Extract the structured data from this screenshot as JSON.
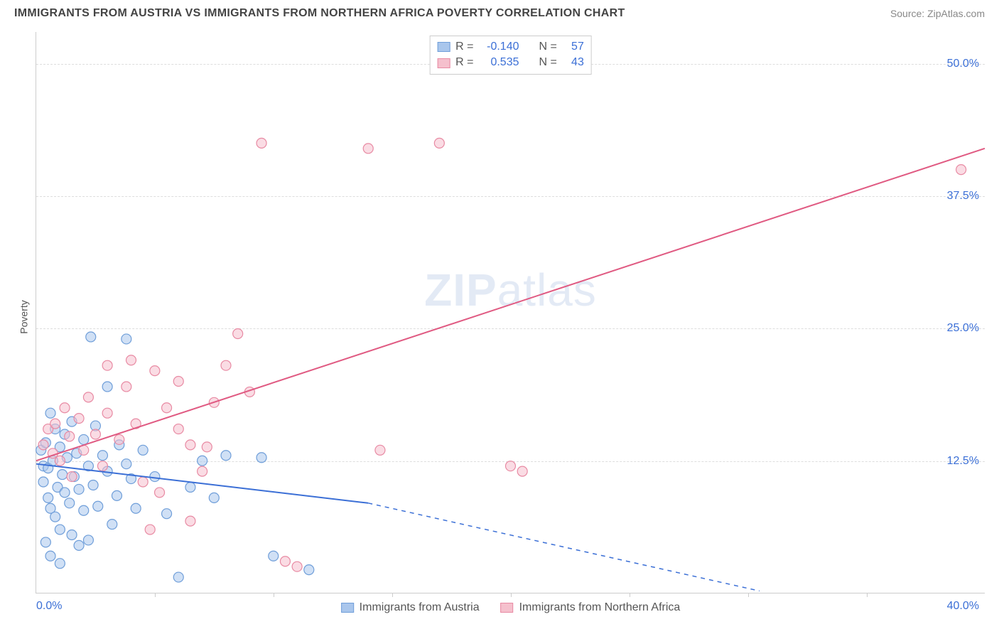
{
  "header": {
    "title": "IMMIGRANTS FROM AUSTRIA VS IMMIGRANTS FROM NORTHERN AFRICA POVERTY CORRELATION CHART",
    "source": "Source: ZipAtlas.com"
  },
  "ylabel": "Poverty",
  "watermark_bold": "ZIP",
  "watermark_rest": "atlas",
  "chart": {
    "type": "scatter-with-regression",
    "x_domain": [
      0,
      40
    ],
    "y_domain": [
      0,
      53
    ],
    "background_color": "#ffffff",
    "grid_color": "#dddddd",
    "grid_dash": "4,4",
    "axis_color": "#cccccc",
    "tick_color": "#3b6fd6",
    "y_gridlines": [
      12.5,
      25.0,
      37.5,
      50.0
    ],
    "y_tick_labels": [
      "12.5%",
      "25.0%",
      "37.5%",
      "50.0%"
    ],
    "x_tickmarks": [
      5,
      10,
      15,
      20,
      25,
      30,
      35
    ],
    "x_left_label": "0.0%",
    "x_right_label": "40.0%",
    "marker_radius": 7,
    "marker_opacity": 0.55,
    "line_width": 2
  },
  "series": [
    {
      "name": "Immigrants from Austria",
      "color_fill": "#a9c6ec",
      "color_stroke": "#6f9ed9",
      "line_color": "#3b6fd6",
      "R": "-0.140",
      "N": "57",
      "regression": {
        "x1": 0,
        "y1": 12.2,
        "x2_solid": 14,
        "y2_solid": 8.5,
        "x2_dash": 30.5,
        "y2_dash": 0.2
      },
      "points": [
        [
          0.2,
          13.5
        ],
        [
          0.3,
          12.0
        ],
        [
          0.3,
          10.5
        ],
        [
          0.4,
          14.2
        ],
        [
          0.5,
          11.8
        ],
        [
          0.5,
          9.0
        ],
        [
          0.6,
          17.0
        ],
        [
          0.6,
          8.0
        ],
        [
          0.7,
          12.5
        ],
        [
          0.8,
          15.5
        ],
        [
          0.8,
          7.2
        ],
        [
          0.9,
          10.0
        ],
        [
          1.0,
          13.8
        ],
        [
          1.0,
          6.0
        ],
        [
          1.1,
          11.2
        ],
        [
          1.2,
          9.5
        ],
        [
          1.2,
          15.0
        ],
        [
          1.3,
          12.8
        ],
        [
          1.4,
          8.5
        ],
        [
          1.5,
          16.2
        ],
        [
          1.5,
          5.5
        ],
        [
          1.6,
          11.0
        ],
        [
          1.7,
          13.2
        ],
        [
          1.8,
          9.8
        ],
        [
          1.8,
          4.5
        ],
        [
          2.0,
          14.5
        ],
        [
          2.0,
          7.8
        ],
        [
          2.2,
          12.0
        ],
        [
          2.2,
          5.0
        ],
        [
          2.4,
          10.2
        ],
        [
          2.5,
          15.8
        ],
        [
          2.6,
          8.2
        ],
        [
          2.8,
          13.0
        ],
        [
          3.0,
          19.5
        ],
        [
          3.0,
          11.5
        ],
        [
          3.2,
          6.5
        ],
        [
          3.4,
          9.2
        ],
        [
          3.5,
          14.0
        ],
        [
          3.8,
          12.2
        ],
        [
          4.0,
          10.8
        ],
        [
          4.2,
          8.0
        ],
        [
          2.3,
          24.2
        ],
        [
          3.8,
          24.0
        ],
        [
          4.5,
          13.5
        ],
        [
          5.0,
          11.0
        ],
        [
          5.5,
          7.5
        ],
        [
          6.0,
          1.5
        ],
        [
          6.5,
          10.0
        ],
        [
          7.0,
          12.5
        ],
        [
          7.5,
          9.0
        ],
        [
          8.0,
          13.0
        ],
        [
          9.5,
          12.8
        ],
        [
          10.0,
          3.5
        ],
        [
          11.5,
          2.2
        ],
        [
          0.4,
          4.8
        ],
        [
          0.6,
          3.5
        ],
        [
          1.0,
          2.8
        ]
      ]
    },
    {
      "name": "Immigrants from Northern Africa",
      "color_fill": "#f5c0cd",
      "color_stroke": "#e88aa3",
      "line_color": "#e05a82",
      "R": "0.535",
      "N": "43",
      "regression": {
        "x1": 0,
        "y1": 12.5,
        "x2_solid": 40,
        "y2_solid": 42.0,
        "x2_dash": 40,
        "y2_dash": 42.0
      },
      "points": [
        [
          0.3,
          14.0
        ],
        [
          0.5,
          15.5
        ],
        [
          0.7,
          13.2
        ],
        [
          0.8,
          16.0
        ],
        [
          1.0,
          12.5
        ],
        [
          1.2,
          17.5
        ],
        [
          1.4,
          14.8
        ],
        [
          1.5,
          11.0
        ],
        [
          1.8,
          16.5
        ],
        [
          2.0,
          13.5
        ],
        [
          2.2,
          18.5
        ],
        [
          2.5,
          15.0
        ],
        [
          2.8,
          12.0
        ],
        [
          3.0,
          17.0
        ],
        [
          3.0,
          21.5
        ],
        [
          3.5,
          14.5
        ],
        [
          3.8,
          19.5
        ],
        [
          4.0,
          22.0
        ],
        [
          4.2,
          16.0
        ],
        [
          4.5,
          10.5
        ],
        [
          5.0,
          21.0
        ],
        [
          5.5,
          17.5
        ],
        [
          6.0,
          15.5
        ],
        [
          6.0,
          20.0
        ],
        [
          6.5,
          14.0
        ],
        [
          7.0,
          11.5
        ],
        [
          7.5,
          18.0
        ],
        [
          8.0,
          21.5
        ],
        [
          8.5,
          24.5
        ],
        [
          9.0,
          19.0
        ],
        [
          10.5,
          3.0
        ],
        [
          11.0,
          2.5
        ],
        [
          6.5,
          6.8
        ],
        [
          4.8,
          6.0
        ],
        [
          9.5,
          42.5
        ],
        [
          14.0,
          42.0
        ],
        [
          17.0,
          42.5
        ],
        [
          14.5,
          13.5
        ],
        [
          20.0,
          12.0
        ],
        [
          20.5,
          11.5
        ],
        [
          39.0,
          40.0
        ],
        [
          7.2,
          13.8
        ],
        [
          5.2,
          9.5
        ]
      ]
    }
  ],
  "stats_legend_labels": {
    "R": "R =",
    "N": "N ="
  },
  "bottom_legend": [
    {
      "label": "Immigrants from Austria"
    },
    {
      "label": "Immigrants from Northern Africa"
    }
  ]
}
